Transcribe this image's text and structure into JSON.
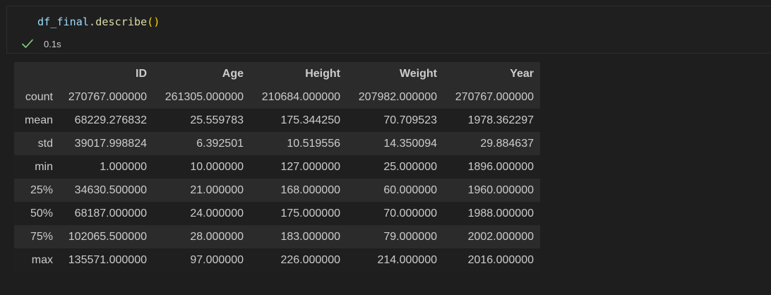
{
  "cell": {
    "code_object": "df_final",
    "code_dot": ".",
    "code_method": "describe",
    "code_parens": "()",
    "status_icon": "check-icon",
    "exec_time": "0.1s",
    "success_color": "#89d185"
  },
  "table": {
    "columns": [
      "",
      "ID",
      "Age",
      "Height",
      "Weight",
      "Year"
    ],
    "rows": [
      {
        "label": "count",
        "values": [
          "270767.000000",
          "261305.000000",
          "210684.000000",
          "207982.000000",
          "270767.000000"
        ]
      },
      {
        "label": "mean",
        "values": [
          "68229.276832",
          "25.559783",
          "175.344250",
          "70.709523",
          "1978.362297"
        ]
      },
      {
        "label": "std",
        "values": [
          "39017.998824",
          "6.392501",
          "10.519556",
          "14.350094",
          "29.884637"
        ]
      },
      {
        "label": "min",
        "values": [
          "1.000000",
          "10.000000",
          "127.000000",
          "25.000000",
          "1896.000000"
        ]
      },
      {
        "label": "25%",
        "values": [
          "34630.500000",
          "21.000000",
          "168.000000",
          "60.000000",
          "1960.000000"
        ]
      },
      {
        "label": "50%",
        "values": [
          "68187.000000",
          "24.000000",
          "175.000000",
          "70.000000",
          "1988.000000"
        ]
      },
      {
        "label": "75%",
        "values": [
          "102065.500000",
          "28.000000",
          "183.000000",
          "79.000000",
          "2002.000000"
        ]
      },
      {
        "label": "max",
        "values": [
          "135571.000000",
          "97.000000",
          "226.000000",
          "214.000000",
          "2016.000000"
        ]
      }
    ]
  }
}
